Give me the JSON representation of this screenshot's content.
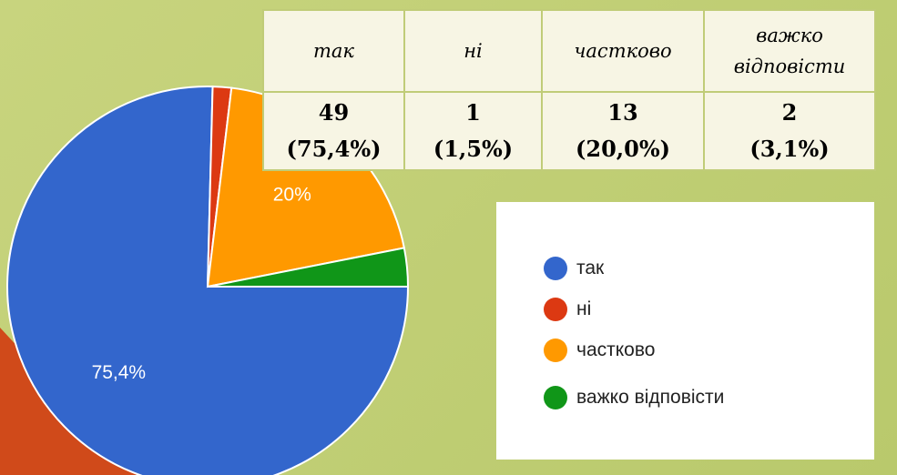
{
  "chart_data": {
    "type": "pie",
    "categories": [
      "так",
      "ні",
      "частково",
      "важко відповісти"
    ],
    "values": [
      75.4,
      1.5,
      20,
      3.1
    ],
    "value_labels": [
      "75,4%",
      null,
      "20%",
      null
    ],
    "colors": [
      "#3366cc",
      "#dc3912",
      "#ff9900",
      "#109618"
    ],
    "legend": "right"
  },
  "table": {
    "header": [
      "так",
      "ні",
      "частково",
      "важко відповісти"
    ],
    "counts": [
      49,
      1,
      13,
      2
    ],
    "shares": [
      "(75,4%)",
      "(1,5%)",
      "(20,0%)",
      "(3,1%)"
    ]
  }
}
